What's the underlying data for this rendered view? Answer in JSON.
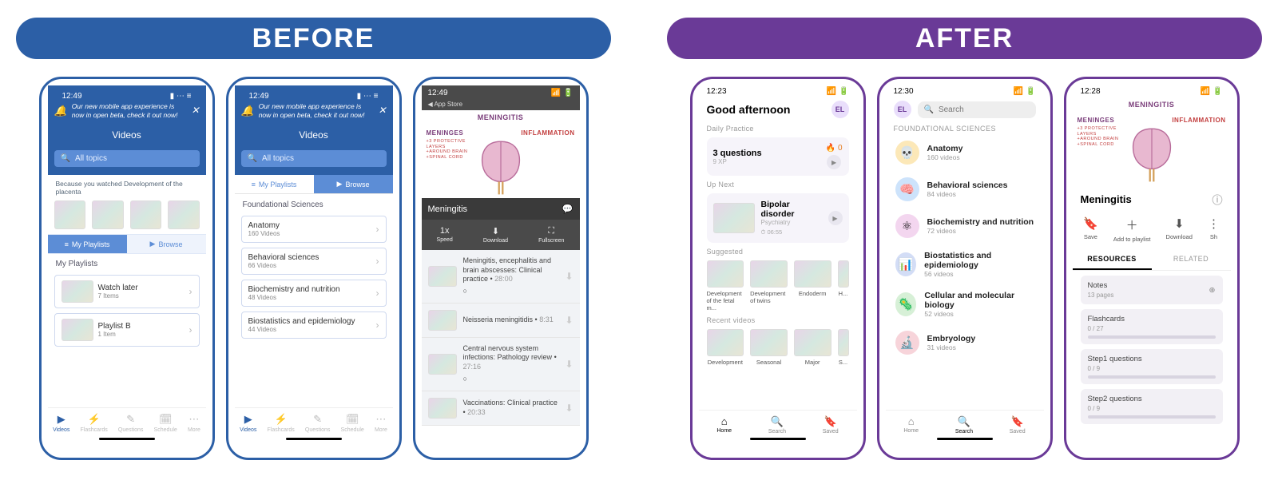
{
  "labels": {
    "before": "BEFORE",
    "after": "AFTER"
  },
  "colors": {
    "before_blue": "#2c5fa6",
    "after_purple": "#6a3a97"
  },
  "before": {
    "time": "12:49",
    "notice": "Our new mobile app experience is now in open beta, check it out now!",
    "videos_title": "Videos",
    "search_placeholder": "All topics",
    "tabs": {
      "mine": "My Playlists",
      "browse": "Browse"
    },
    "because_label": "Because you watched Development of the placenta",
    "playlists_label": "My Playlists",
    "playlists": [
      {
        "title": "Watch later",
        "sub": "7 Items"
      },
      {
        "title": "Playlist B",
        "sub": "1 Item"
      }
    ],
    "subjects_label": "Foundational Sciences",
    "subjects": [
      {
        "title": "Anatomy",
        "sub": "160 Videos"
      },
      {
        "title": "Behavioral sciences",
        "sub": "66 Videos"
      },
      {
        "title": "Biochemistry and nutrition",
        "sub": "48 Videos"
      },
      {
        "title": "Biostatistics and epidemiology",
        "sub": "44 Videos"
      }
    ],
    "nav": [
      "Videos",
      "Flashcards",
      "Questions",
      "Schedule",
      "More"
    ],
    "video": {
      "title": "Meningitis",
      "speed": "1x",
      "speed_l": "Speed",
      "download_l": "Download",
      "full_l": "Fullscreen",
      "brain_top": "MENINGITIS",
      "brain_left": "MENINGES",
      "brain_right": "INFLAMMATION",
      "brain_left2": "+3 PROTECTIVE\nLAYERS\n+AROUND BRAIN\n+SPINAL CORD",
      "list": [
        {
          "t": "Meningitis, encephalitis and brain abscesses: Clinical practice",
          "d": "28:00"
        },
        {
          "t": "Neisseria meningitidis",
          "d": "8:31"
        },
        {
          "t": "Central nervous system infections: Pathology review",
          "d": "27:16"
        },
        {
          "t": "Vaccinations: Clinical practice",
          "d": "20:33"
        }
      ]
    },
    "app_store": "App Store"
  },
  "after": {
    "times": [
      "12:23",
      "12:30",
      "12:28"
    ],
    "greeting": "Good afternoon",
    "avatar": "EL",
    "daily_label": "Daily Practice",
    "daily": {
      "q": "3 questions",
      "xp": "9 XP",
      "streak": "0"
    },
    "upnext_label": "Up Next",
    "upnext": {
      "title": "Bipolar disorder",
      "cat": "Psychiatry",
      "dur": "06:55"
    },
    "suggested_label": "Suggested",
    "suggested": [
      "Development of the fetal m...",
      "Development of twins",
      "Endoderm",
      "H..."
    ],
    "recent_label": "Recent videos",
    "recent": [
      "Development",
      "Seasonal",
      "Major",
      "S..."
    ],
    "nav": [
      "Home",
      "Search",
      "Saved"
    ],
    "search_placeholder": "Search",
    "found_label": "FOUNDATIONAL SCIENCES",
    "subjects": [
      {
        "ic": "💀",
        "c": "#fce8b8",
        "t": "Anatomy",
        "s": "160 videos"
      },
      {
        "ic": "🧠",
        "c": "#cde3fb",
        "t": "Behavioral sciences",
        "s": "84 videos"
      },
      {
        "ic": "⚛",
        "c": "#f3d6ef",
        "t": "Biochemistry and nutrition",
        "s": "72 videos"
      },
      {
        "ic": "📊",
        "c": "#d3ddf6",
        "t": "Biostatistics and epidemiology",
        "s": "56 videos"
      },
      {
        "ic": "🦠",
        "c": "#d7f0d7",
        "t": "Cellular and molecular biology",
        "s": "52 videos"
      },
      {
        "ic": "🔬",
        "c": "#f7d4da",
        "t": "Embryology",
        "s": "31 videos"
      }
    ],
    "video": {
      "title": "Meningitis",
      "actions": [
        "Save",
        "Add to playlist",
        "Download",
        "Sh"
      ],
      "tabs": [
        "RESOURCES",
        "RELATED"
      ],
      "resources": [
        {
          "t": "Notes",
          "s": "13 pages",
          "dl": true
        },
        {
          "t": "Flashcards",
          "s": "0 / 27",
          "bar": true
        },
        {
          "t": "Step1 questions",
          "s": "0 / 9",
          "bar": true
        },
        {
          "t": "Step2 questions",
          "s": "0 / 9",
          "bar": true
        }
      ]
    }
  }
}
